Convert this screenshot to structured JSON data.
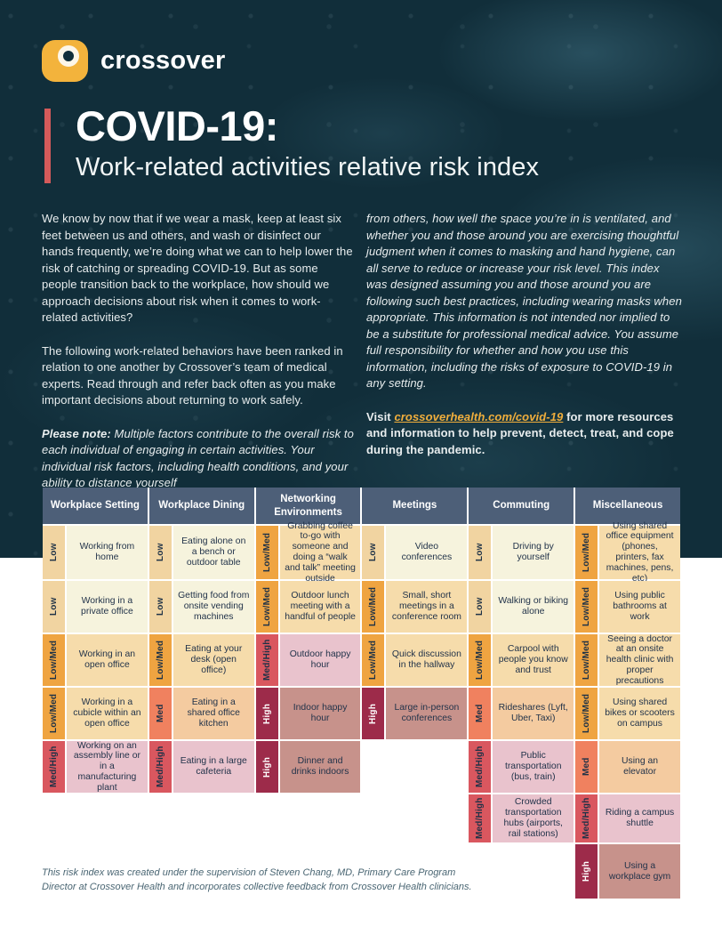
{
  "brand": {
    "name": "crossover",
    "mark_color": "#f3b33c"
  },
  "header": {
    "title": "COVID-19:",
    "subtitle": "Work-related activities relative risk index",
    "accent_color": "#d45a5a"
  },
  "intro": {
    "p1": "We know by now that if we wear a mask, keep at least six feet between us and others, and wash or disinfect our hands frequently, we’re doing what we can to help lower the risk of catching or spreading COVID-19. But as some people transition back to the workplace, how should we approach decisions about risk when it comes to work-related activities?",
    "p2": "The following work-related behaviors have been ranked in relation to one another by Crossover’s team of medical experts. Read through and refer back often as you make important decisions about returning to work safely.",
    "note_label": "Please note:",
    "note_body": " Multiple factors contribute to the overall risk to each individual of engaging in certain activities. Your individual risk factors, including health conditions, and your ability to distance yourself",
    "continuation": "from others, how well the space you’re in is ventilated, and whether you and those around you are exercising thoughtful judgment when it comes to masking and hand hygiene, can all serve to reduce or increase your risk level. This index was designed assuming you and those around you are following such best practices, including wearing masks when appropriate. This information is not intended nor implied to be a substitute for professional medical advice. You assume full responsibility for whether and how you use this information, including the risks of exposure to COVID-19 in any setting.",
    "visit_prefix": "Visit ",
    "visit_link": "crossoverhealth.com/covid-19",
    "visit_suffix": " for more resources and information to help prevent, detect, treat, and cope during the pandemic.",
    "link_color": "#f0ae3c"
  },
  "risk_levels": {
    "Low": {
      "label_bg": "#f1d4a1",
      "label_text": "#1e3247",
      "cell_bg": "#f6f3dd"
    },
    "Low/Med": {
      "label_bg": "#efa441",
      "label_text": "#1e3247",
      "cell_bg": "#f6dcab"
    },
    "Med": {
      "label_bg": "#f0815f",
      "label_text": "#1e3247",
      "cell_bg": "#f4cba0"
    },
    "Med/High": {
      "label_bg": "#d9575f",
      "label_text": "#1e3247",
      "cell_bg": "#e9c3cd"
    },
    "High": {
      "label_bg": "#9d2b4a",
      "label_text": "#ffffff",
      "cell_bg": "#c7928b"
    }
  },
  "table": {
    "header_bg": "#4d5f78",
    "header_text": "#ffffff",
    "columns": [
      {
        "header": "Workplace Setting",
        "rows": [
          {
            "level": "Low",
            "activity": "Working from home"
          },
          {
            "level": "Low",
            "activity": "Working in a private office"
          },
          {
            "level": "Low/Med",
            "activity": "Working in an open office"
          },
          {
            "level": "Low/Med",
            "activity": "Working in a cubicle within an open office"
          },
          {
            "level": "Med/High",
            "activity": "Working on an assembly line or in a manufacturing plant"
          }
        ]
      },
      {
        "header": "Workplace Dining",
        "rows": [
          {
            "level": "Low",
            "activity": "Eating alone on a bench or outdoor table"
          },
          {
            "level": "Low",
            "activity": "Getting food from onsite vending machines"
          },
          {
            "level": "Low/Med",
            "activity": "Eating at your desk (open office)"
          },
          {
            "level": "Med",
            "activity": "Eating in a shared office kitchen"
          },
          {
            "level": "Med/High",
            "activity": "Eating in a large cafeteria"
          }
        ]
      },
      {
        "header": "Networking Environments",
        "rows": [
          {
            "level": "Low/Med",
            "activity": "Grabbing coffee to-go with someone and doing a “walk and talk” meeting outside"
          },
          {
            "level": "Low/Med",
            "activity": "Outdoor lunch meeting with a handful of people"
          },
          {
            "level": "Med/High",
            "activity": "Outdoor happy hour"
          },
          {
            "level": "High",
            "activity": "Indoor happy hour"
          },
          {
            "level": "High",
            "activity": "Dinner and drinks indoors"
          }
        ]
      },
      {
        "header": "Meetings",
        "rows": [
          {
            "level": "Low",
            "activity": "Video conferences"
          },
          {
            "level": "Low/Med",
            "activity": "Small, short meetings in a conference room"
          },
          {
            "level": "Low/Med",
            "activity": "Quick discussion in the hallway"
          },
          {
            "level": "High",
            "activity": "Large in-person conferences"
          }
        ]
      },
      {
        "header": "Commuting",
        "rows": [
          {
            "level": "Low",
            "activity": "Driving by yourself"
          },
          {
            "level": "Low",
            "activity": "Walking or biking alone"
          },
          {
            "level": "Low/Med",
            "activity": "Carpool with people you know and trust"
          },
          {
            "level": "Med",
            "activity": "Rideshares (Lyft, Uber, Taxi)"
          },
          {
            "level": "Med/High",
            "activity": "Public transportation (bus, train)"
          },
          {
            "level": "Med/High",
            "activity": "Crowded transportation hubs (airports, rail stations)"
          }
        ]
      },
      {
        "header": "Miscellaneous",
        "rows": [
          {
            "level": "Low/Med",
            "activity": "Using shared office equipment (phones, printers, fax machines, pens, etc)"
          },
          {
            "level": "Low/Med",
            "activity": "Using public bathrooms at work"
          },
          {
            "level": "Low/Med",
            "activity": "Seeing a doctor at an onsite health clinic with proper precautions"
          },
          {
            "level": "Low/Med",
            "activity": "Using shared bikes or scooters on campus"
          },
          {
            "level": "Med",
            "activity": "Using an elevator"
          },
          {
            "level": "Med/High",
            "activity": "Riding a campus shuttle"
          },
          {
            "level": "High",
            "activity": "Using a workplace gym"
          }
        ]
      }
    ]
  },
  "footer": {
    "note": "This risk index was created under the supervision of Steven Chang, MD, Primary Care Program Director at Crossover Health and incorporates collective feedback from Crossover Health clinicians."
  }
}
